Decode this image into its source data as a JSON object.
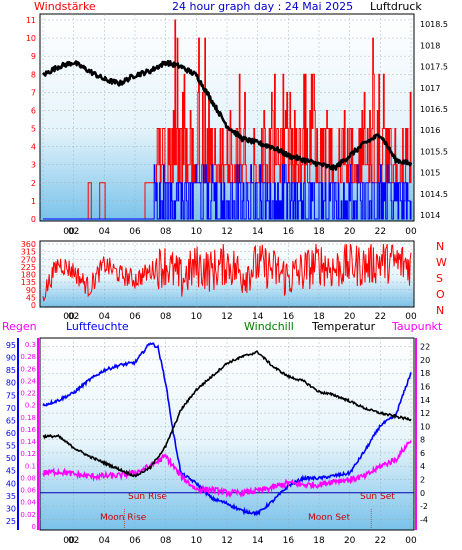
{
  "header": {
    "left_label": "Windstärke",
    "title": "24 hour graph day : 24 Mai 2025",
    "right_label": "Luftdruck"
  },
  "legend2": {
    "regen": "Regen",
    "luftfeuchte": "Luftfeuchte",
    "windchill": "Windchill",
    "temperatur": "Temperatur",
    "taupunkt": "Taupunkt"
  },
  "annotations": {
    "sun_rise": "Sun Rise",
    "sun_set": "Sun Set",
    "moon_rise": "Moon Rise",
    "moon_set": "Moon Set"
  },
  "colors": {
    "wind": "#0000ff",
    "gust": "#ff0000",
    "pressure": "#000000",
    "direction": "#ff0000",
    "humidity": "#0000ff",
    "windchill": "#008000",
    "temperature": "#000000",
    "dewpoint": "#ff00ff",
    "rain": "#ff00ff"
  },
  "chart_data": [
    {
      "type": "bar",
      "name": "wind_pressure",
      "x_ticks": [
        "00",
        "02",
        "04",
        "06",
        "08",
        "10",
        "12",
        "14",
        "16",
        "18",
        "20",
        "22",
        "00"
      ],
      "left_axis": {
        "label": "Windstärke",
        "ticks": [
          0,
          1,
          2,
          3,
          4,
          5,
          6,
          7,
          8,
          9,
          10,
          11
        ],
        "ylim": [
          0,
          11
        ]
      },
      "right_axis": {
        "label": "Luftdruck",
        "ticks": [
          "1014",
          "1014.5",
          "1015",
          "1015.5",
          "1016",
          "1016.5",
          "1017",
          "1017.5",
          "1018",
          "1018.5"
        ],
        "ylim": [
          1014,
          1018.6
        ]
      },
      "pressure_series": {
        "hours": [
          0,
          1,
          2,
          3,
          4,
          5,
          6,
          7,
          8,
          9,
          10,
          11,
          12,
          13,
          14,
          15,
          16,
          17,
          18,
          19,
          20,
          21,
          22,
          23,
          24
        ],
        "values": [
          1017.3,
          1017.5,
          1017.6,
          1017.4,
          1017.2,
          1017.1,
          1017.3,
          1017.4,
          1017.6,
          1017.5,
          1017.3,
          1016.7,
          1016.1,
          1015.8,
          1015.7,
          1015.6,
          1015.4,
          1015.3,
          1015.2,
          1015.1,
          1015.4,
          1015.7,
          1015.9,
          1015.3,
          1015.2
        ]
      },
      "wind_levels": {
        "quiet_hours": [
          0,
          7.2
        ],
        "active_hours": [
          7.2,
          24
        ],
        "typical": [
          0,
          3
        ],
        "gust_typical": [
          0,
          5
        ],
        "gust_peak": 11
      }
    },
    {
      "type": "line",
      "name": "wind_direction",
      "x_ticks": [
        "00",
        "02",
        "04",
        "06",
        "08",
        "10",
        "12",
        "14",
        "16",
        "18",
        "20",
        "22",
        "00"
      ],
      "left_ticks": [
        0,
        45,
        90,
        135,
        180,
        225,
        270,
        315,
        360
      ],
      "right_ticks": [
        "N",
        "W",
        "S",
        "O",
        "N"
      ],
      "ylim": [
        0,
        360
      ],
      "hours": [
        0,
        1,
        2,
        3,
        4,
        5,
        6,
        7,
        8,
        9,
        10,
        11,
        12,
        13,
        14,
        15,
        16,
        17,
        18,
        19,
        20,
        21,
        22,
        23,
        24
      ],
      "values": [
        60,
        250,
        200,
        100,
        240,
        180,
        150,
        200,
        240,
        150,
        230,
        200,
        250,
        180,
        240,
        210,
        160,
        200,
        250,
        210,
        240,
        230,
        260,
        250,
        240
      ]
    },
    {
      "type": "line",
      "name": "climate",
      "x_ticks": [
        "00",
        "02",
        "04",
        "06",
        "08",
        "10",
        "12",
        "14",
        "16",
        "18",
        "20",
        "22",
        "00"
      ],
      "rain_ticks": [
        "0",
        "0.02",
        "0.04",
        "0.06",
        "0.08",
        "0.1",
        "0.12",
        "0.14",
        "0.16",
        "0.18",
        "0.2",
        "0.22",
        "0.24",
        "0.26",
        "0.28",
        "0.3"
      ],
      "humidity_ticks": [
        25,
        30,
        35,
        40,
        45,
        50,
        55,
        60,
        65,
        70,
        75,
        80,
        85,
        90,
        95
      ],
      "temp_ticks": [
        -4,
        -2,
        0,
        2,
        4,
        6,
        8,
        10,
        12,
        14,
        16,
        18,
        20,
        22
      ],
      "humidity": {
        "hours": [
          0,
          1,
          2,
          3,
          4,
          5,
          6,
          7,
          7.5,
          8,
          8.5,
          9,
          10,
          11,
          12,
          13,
          14,
          15,
          16,
          17,
          18,
          19,
          20,
          21,
          22,
          23,
          24
        ],
        "values": [
          71,
          73,
          76,
          81,
          85,
          87,
          88,
          96,
          94,
          80,
          60,
          44,
          40,
          34,
          32,
          29,
          28,
          33,
          39,
          42,
          42,
          43,
          44,
          53,
          63,
          67,
          84
        ],
        "ylim": [
          23,
          97
        ]
      },
      "temperature": {
        "hours": [
          0,
          1,
          2,
          3,
          4,
          5,
          6,
          7,
          8,
          9,
          10,
          11,
          12,
          13,
          14,
          15,
          16,
          17,
          18,
          19,
          20,
          21,
          22,
          23,
          24
        ],
        "values": [
          8.5,
          8.5,
          6.8,
          5.5,
          4.5,
          3.5,
          2.5,
          3.8,
          7.0,
          12.5,
          15.5,
          17.5,
          19.5,
          20.5,
          21.2,
          19.0,
          17.5,
          16.8,
          15.2,
          14.7,
          13.8,
          12.7,
          12.0,
          11.5,
          11.0
        ],
        "ylim": [
          -5,
          23
        ]
      },
      "dewpoint": {
        "hours": [
          0,
          1,
          2,
          3,
          4,
          5,
          6,
          7,
          8,
          9,
          10,
          11,
          12,
          13,
          14,
          15,
          16,
          17,
          18,
          19,
          20,
          21,
          22,
          23,
          24
        ],
        "values": [
          3.0,
          3.2,
          2.8,
          2.5,
          2.5,
          2.6,
          3.0,
          4.0,
          5.5,
          2.5,
          0.5,
          0.5,
          0.0,
          0.0,
          0.3,
          0.8,
          1.5,
          1.2,
          1.2,
          1.8,
          2.0,
          2.5,
          4.0,
          5.0,
          8.0
        ],
        "ylim": [
          -5,
          23
        ]
      },
      "rain": {
        "value": 0
      },
      "sun_rise_hour": 5.5,
      "sun_set_hour": 21.5,
      "moon_rise_hour": 5.3,
      "moon_set_hour": 21.4
    }
  ]
}
